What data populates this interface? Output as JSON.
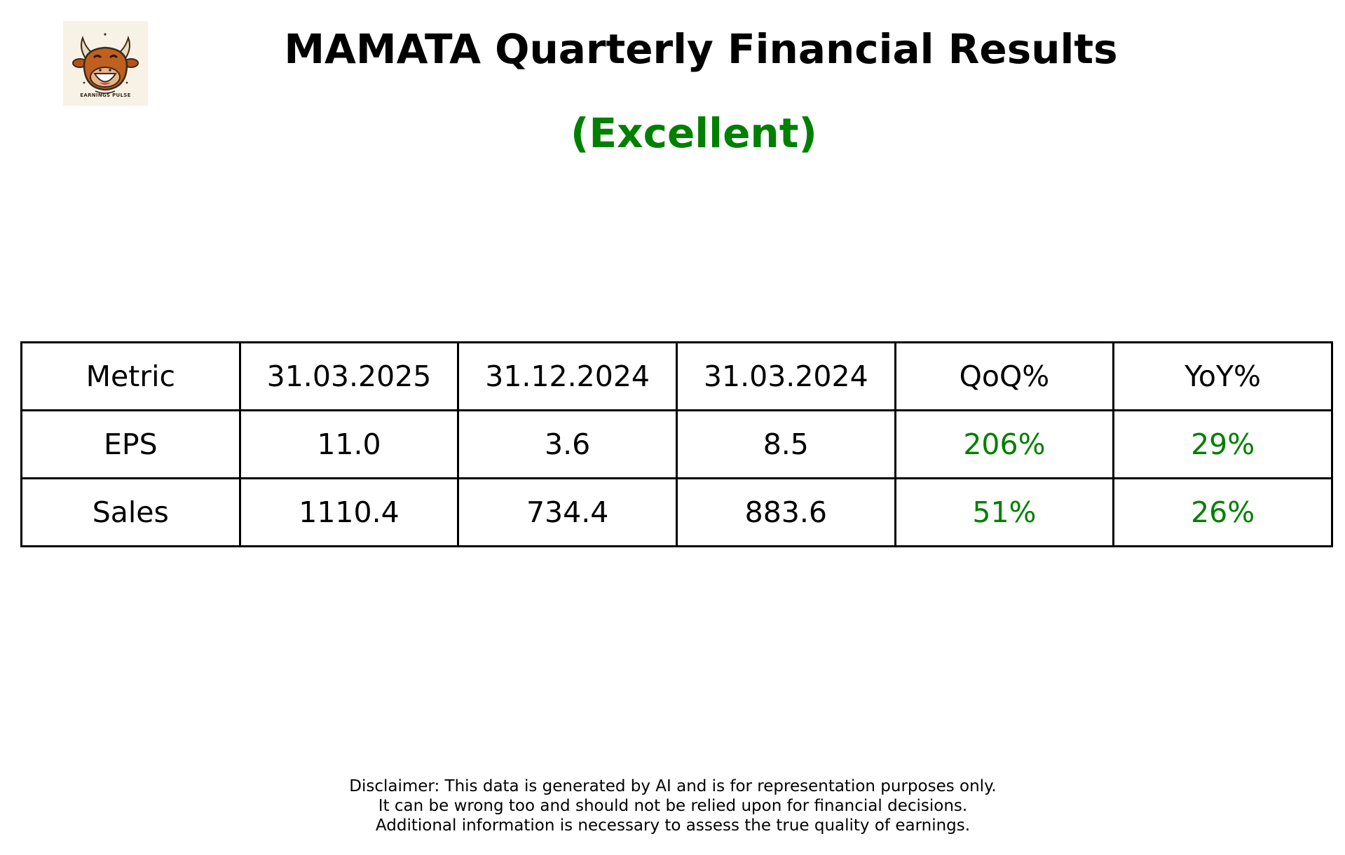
{
  "logo": {
    "text": "EARNINGS PULSE",
    "icon": "laughing-bull-icon",
    "background": "#f8f2e6"
  },
  "title": "MAMATA Quarterly Financial Results",
  "rating": {
    "label": "(Excellent)",
    "color": "#008000"
  },
  "table": {
    "headers": [
      "Metric",
      "31.03.2025",
      "31.12.2024",
      "31.03.2024",
      "QoQ%",
      "YoY%"
    ],
    "rows": [
      [
        "EPS",
        "11.0",
        "3.6",
        "8.5",
        "206%",
        "29%"
      ],
      [
        "Sales",
        "1110.4",
        "734.4",
        "883.6",
        "51%",
        "26%"
      ]
    ],
    "positive_color": "#008000"
  },
  "disclaimer": [
    "Disclaimer: This data is generated by AI and is for representation purposes only.",
    "It can be wrong too and should not be relied upon for financial decisions.",
    "Additional information is necessary to assess the true quality of earnings."
  ]
}
